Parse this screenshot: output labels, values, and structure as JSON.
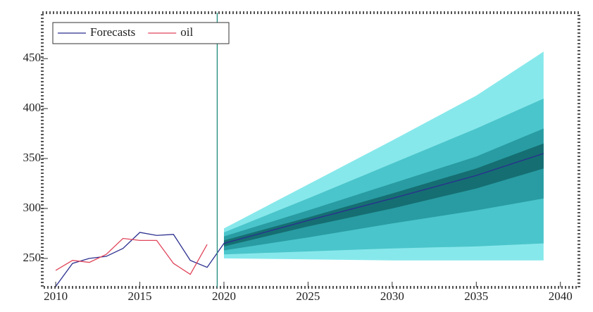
{
  "chart_data": {
    "type": "fan",
    "xlim": [
      2009.2,
      2041.1
    ],
    "ylim": [
      221,
      496
    ],
    "xticks": [
      2010,
      2015,
      2020,
      2025,
      2030,
      2035,
      2040
    ],
    "yticks": [
      250,
      300,
      350,
      400,
      450
    ],
    "grid": false,
    "legend": "top-left",
    "vline": 2019.6,
    "vline_color": "#1f8a7a",
    "series": [
      {
        "name": "Forecasts",
        "color": "#2b2f8f",
        "x": [
          2010,
          2011,
          2012,
          2013,
          2014,
          2015,
          2016,
          2017,
          2018,
          2019,
          2020,
          2025,
          2030,
          2035,
          2039
        ],
        "values": [
          222,
          245,
          250,
          252,
          260,
          276,
          273,
          274,
          248,
          241,
          265,
          288,
          310,
          333,
          355
        ]
      },
      {
        "name": "oil",
        "color": "#e0455a",
        "x": [
          2010,
          2011,
          2012,
          2013,
          2014,
          2015,
          2016,
          2017,
          2018,
          2019
        ],
        "values": [
          238,
          248,
          246,
          254,
          270,
          268,
          268,
          245,
          234,
          264
        ]
      }
    ],
    "bands": {
      "x": [
        2020,
        2025,
        2030,
        2035,
        2039
      ],
      "levels": [
        {
          "color": "#5fe0e4",
          "upper": [
            280,
            324,
            368,
            413,
            457
          ],
          "lower": [
            250,
            249,
            248,
            248,
            248
          ]
        },
        {
          "color": "#36b9c0",
          "upper": [
            276,
            310,
            345,
            380,
            410
          ],
          "lower": [
            254,
            257,
            260,
            262,
            265
          ]
        },
        {
          "color": "#1d8e94",
          "upper": [
            272,
            298,
            325,
            352,
            380
          ],
          "lower": [
            258,
            271,
            285,
            298,
            310
          ]
        },
        {
          "color": "#0f5f62",
          "upper": [
            268,
            291,
            315,
            340,
            365
          ],
          "lower": [
            262,
            282,
            300,
            320,
            340
          ]
        }
      ]
    }
  }
}
